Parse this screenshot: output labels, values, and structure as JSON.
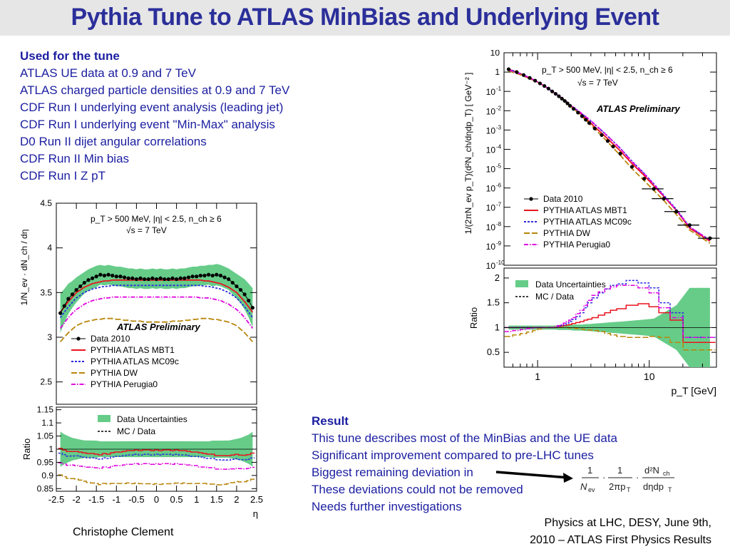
{
  "title": "Pythia Tune to ATLAS MinBias and Underlying Event",
  "used_for_tune": {
    "heading": "Used for the tune",
    "items": [
      "ATLAS UE data at 0.9 and 7 TeV",
      "ATLAS charged particle densities at 0.9 and 7 TeV",
      "CDF Run I underlying event analysis (leading jet)",
      "CDF Run I underlying event \"Min-Max\" analysis",
      "D0 Run II dijet angular correlations",
      "CDF Run II Min bias",
      "CDF Run I Z pT"
    ]
  },
  "result": {
    "heading": "Result",
    "items": [
      "This tune describes most of the MinBias and the UE data",
      "Significant improvement compared to pre-LHC tunes",
      "Biggest remaining deviation in",
      "These deviations could not be removed",
      "Needs further investigations"
    ]
  },
  "formula": {
    "num1": "1",
    "den1": "N",
    "sub1": "ev",
    "num2": "1",
    "den2": "2πp",
    "sub2": "T",
    "num3": "d²N",
    "sub3n": "ch",
    "den3": "dηdp",
    "sub3d": "T"
  },
  "footer": {
    "left": "Christophe Clement",
    "right_line1": "Physics at LHC,  DESY, June  9th,",
    "right_line2": "2010  –  ATLAS First Physics Results"
  },
  "colors": {
    "title": "#2b2f9a",
    "text": "#1b1ea0",
    "band": "#66cc88",
    "data": "#000000",
    "mbt1": "#e8141e",
    "mc09c": "#2a2ae0",
    "dw": "#b8860b",
    "perugia0": "#e000e0"
  },
  "chart_data": [
    {
      "type": "line",
      "name": "eta",
      "cut_label": "p_T > 500 MeV, |η| < 2.5, n_ch ≥ 6",
      "energy_label": "√s = 7 TeV",
      "preliminary": "ATLAS Preliminary",
      "xlabel": "η",
      "ylabel": "1/N_ev · dN_ch / dη",
      "ratio_ylabel": "Ratio",
      "xlim": [
        -2.5,
        2.5
      ],
      "ylim": [
        2.25,
        4.5
      ],
      "ratio_ylim": [
        0.84,
        1.16
      ],
      "xticks": [
        "-2.5",
        "-2",
        "-1.5",
        "-1",
        "-0.5",
        "0",
        "0.5",
        "1",
        "1.5",
        "2",
        "2.5"
      ],
      "yticks": [
        "2.5",
        "3",
        "3.5",
        "4",
        "4.5"
      ],
      "ratio_yticks": [
        "0.85",
        "0.9",
        "0.95",
        "1",
        "1.05",
        "1.1",
        "1.15"
      ],
      "legend": [
        "Data 2010",
        "PYTHIA ATLAS MBT1",
        "PYTHIA ATLAS MC09c",
        "PYTHIA DW",
        "PYTHIA Perugia0"
      ],
      "ratio_legend": [
        "Data Uncertainties",
        "MC / Data"
      ],
      "x": [
        -2.4,
        -2.3,
        -2.2,
        -2.1,
        -2.0,
        -1.9,
        -1.8,
        -1.7,
        -1.6,
        -1.5,
        -1.4,
        -1.3,
        -1.2,
        -1.1,
        -1.0,
        -0.9,
        -0.8,
        -0.7,
        -0.6,
        -0.5,
        -0.4,
        -0.3,
        -0.2,
        -0.1,
        0.0,
        0.1,
        0.2,
        0.3,
        0.4,
        0.5,
        0.6,
        0.7,
        0.8,
        0.9,
        1.0,
        1.1,
        1.2,
        1.3,
        1.4,
        1.5,
        1.6,
        1.7,
        1.8,
        1.9,
        2.0,
        2.1,
        2.2,
        2.3,
        2.4
      ],
      "series": [
        {
          "name": "Data 2010",
          "values": [
            3.27,
            3.35,
            3.43,
            3.48,
            3.53,
            3.57,
            3.61,
            3.64,
            3.66,
            3.68,
            3.7,
            3.69,
            3.7,
            3.69,
            3.68,
            3.68,
            3.67,
            3.66,
            3.66,
            3.65,
            3.66,
            3.65,
            3.65,
            3.66,
            3.65,
            3.66,
            3.65,
            3.65,
            3.66,
            3.65,
            3.66,
            3.66,
            3.67,
            3.68,
            3.68,
            3.69,
            3.69,
            3.7,
            3.69,
            3.7,
            3.69,
            3.67,
            3.65,
            3.61,
            3.57,
            3.53,
            3.48,
            3.41,
            3.33
          ]
        },
        {
          "name": "PYTHIA ATLAS MBT1",
          "values": [
            3.28,
            3.34,
            3.4,
            3.45,
            3.5,
            3.53,
            3.56,
            3.58,
            3.6,
            3.61,
            3.62,
            3.63,
            3.63,
            3.64,
            3.64,
            3.64,
            3.64,
            3.64,
            3.64,
            3.64,
            3.64,
            3.64,
            3.64,
            3.64,
            3.64,
            3.64,
            3.64,
            3.64,
            3.64,
            3.64,
            3.64,
            3.64,
            3.64,
            3.64,
            3.64,
            3.64,
            3.63,
            3.63,
            3.62,
            3.61,
            3.6,
            3.58,
            3.56,
            3.53,
            3.5,
            3.45,
            3.4,
            3.34,
            3.28
          ]
        },
        {
          "name": "PYTHIA ATLAS MC09c",
          "values": [
            3.22,
            3.28,
            3.34,
            3.39,
            3.44,
            3.47,
            3.5,
            3.52,
            3.54,
            3.55,
            3.56,
            3.57,
            3.57,
            3.58,
            3.58,
            3.58,
            3.58,
            3.58,
            3.58,
            3.58,
            3.58,
            3.58,
            3.58,
            3.58,
            3.58,
            3.58,
            3.58,
            3.58,
            3.58,
            3.58,
            3.58,
            3.58,
            3.58,
            3.58,
            3.58,
            3.58,
            3.57,
            3.57,
            3.56,
            3.55,
            3.54,
            3.52,
            3.5,
            3.47,
            3.44,
            3.39,
            3.34,
            3.28,
            3.22
          ]
        },
        {
          "name": "PYTHIA DW",
          "values": [
            2.95,
            3.0,
            3.05,
            3.09,
            3.13,
            3.15,
            3.17,
            3.18,
            3.19,
            3.2,
            3.2,
            3.21,
            3.21,
            3.21,
            3.2,
            3.2,
            3.19,
            3.19,
            3.18,
            3.18,
            3.18,
            3.17,
            3.17,
            3.17,
            3.17,
            3.17,
            3.17,
            3.17,
            3.18,
            3.18,
            3.18,
            3.19,
            3.19,
            3.2,
            3.2,
            3.21,
            3.21,
            3.21,
            3.2,
            3.2,
            3.19,
            3.18,
            3.17,
            3.15,
            3.13,
            3.09,
            3.05,
            3.0,
            2.95
          ]
        },
        {
          "name": "PYTHIA Perugia0",
          "values": [
            3.1,
            3.16,
            3.22,
            3.27,
            3.31,
            3.34,
            3.37,
            3.39,
            3.41,
            3.42,
            3.43,
            3.44,
            3.44,
            3.45,
            3.45,
            3.45,
            3.45,
            3.45,
            3.45,
            3.45,
            3.45,
            3.45,
            3.45,
            3.45,
            3.45,
            3.45,
            3.45,
            3.45,
            3.45,
            3.45,
            3.45,
            3.45,
            3.45,
            3.45,
            3.45,
            3.44,
            3.44,
            3.44,
            3.43,
            3.42,
            3.41,
            3.39,
            3.37,
            3.34,
            3.31,
            3.27,
            3.22,
            3.16,
            3.1
          ]
        }
      ],
      "band_halfwidth": [
        0.22,
        0.19,
        0.17,
        0.15,
        0.14,
        0.13,
        0.12,
        0.12,
        0.12,
        0.12,
        0.11,
        0.11,
        0.11,
        0.11,
        0.11,
        0.11,
        0.11,
        0.11,
        0.11,
        0.11,
        0.11,
        0.11,
        0.11,
        0.11,
        0.11,
        0.11,
        0.11,
        0.11,
        0.11,
        0.11,
        0.11,
        0.11,
        0.11,
        0.11,
        0.11,
        0.11,
        0.11,
        0.11,
        0.12,
        0.12,
        0.12,
        0.12,
        0.12,
        0.13,
        0.14,
        0.15,
        0.17,
        0.19,
        0.22
      ]
    },
    {
      "type": "line",
      "name": "pt",
      "cut_label": "p_T > 500 MeV, |η| < 2.5, n_ch ≥ 6",
      "energy_label": "√s = 7 TeV",
      "preliminary": "ATLAS Preliminary",
      "xlabel": "p_T [GeV]",
      "ylabel": "1/(2πN_ev p_T)(d²N_ch/dηdp_T) [ GeV⁻² ]",
      "ratio_ylabel": "Ratio",
      "xscale": "log",
      "yscale": "log",
      "xlim": [
        0.5,
        40
      ],
      "ylim": [
        1e-10,
        10
      ],
      "ratio_ylim": [
        0.2,
        2.2
      ],
      "xticks": [
        "1",
        "10"
      ],
      "yticks": [
        "10",
        "1",
        "10-1",
        "10-2",
        "10-3",
        "10-4",
        "10-5",
        "10-6",
        "10-7",
        "10-8",
        "10-9",
        "10-10"
      ],
      "ratio_yticks": [
        "0.5",
        "1",
        "1.5",
        "2"
      ],
      "legend": [
        "Data 2010",
        "PYTHIA ATLAS MBT1",
        "PYTHIA ATLAS MC09c",
        "PYTHIA DW",
        "PYTHIA Perugia0"
      ],
      "ratio_legend": [
        "Data Uncertainties",
        "MC / Data"
      ],
      "x": [
        0.55,
        0.65,
        0.75,
        0.85,
        0.95,
        1.05,
        1.15,
        1.25,
        1.35,
        1.45,
        1.55,
        1.65,
        1.75,
        1.85,
        1.95,
        2.1,
        2.3,
        2.5,
        2.7,
        2.9,
        3.25,
        3.75,
        4.25,
        4.75,
        5.5,
        7.0,
        9.0,
        11.0,
        13.5,
        17.5,
        23.0,
        35.0
      ],
      "series": [
        {
          "name": "Data 2010",
          "values": [
            1.4,
            1.0,
            0.7,
            0.5,
            0.36,
            0.26,
            0.19,
            0.14,
            0.1,
            0.075,
            0.056,
            0.042,
            0.032,
            0.024,
            0.018,
            0.0125,
            0.008,
            0.0052,
            0.0034,
            0.0023,
            0.0012,
            0.00055,
            0.00027,
            0.00014,
            6e-05,
            1.25e-05,
            3e-06,
            9e-07,
            2.8e-07,
            6e-08,
            1.2e-08,
            2.5e-09
          ]
        }
      ],
      "ratio_series": [
        {
          "name": "PYTHIA ATLAS MBT1",
          "values": [
            1.0,
            1.0,
            1.0,
            1.0,
            1.0,
            1.0,
            1.0,
            1.0,
            1.0,
            1.0,
            1.02,
            1.03,
            1.04,
            1.05,
            1.06,
            1.08,
            1.1,
            1.12,
            1.15,
            1.17,
            1.2,
            1.25,
            1.3,
            1.35,
            1.38,
            1.45,
            1.48,
            1.42,
            1.3,
            1.15,
            0.7,
            0.7
          ]
        },
        {
          "name": "PYTHIA ATLAS MC09c",
          "values": [
            1.0,
            1.0,
            1.0,
            1.0,
            1.0,
            1.0,
            1.0,
            1.0,
            1.0,
            1.0,
            1.02,
            1.04,
            1.06,
            1.09,
            1.12,
            1.16,
            1.22,
            1.3,
            1.4,
            1.5,
            1.6,
            1.7,
            1.78,
            1.85,
            1.88,
            1.95,
            1.9,
            1.8,
            1.5,
            1.3,
            0.8,
            0.8
          ]
        },
        {
          "name": "PYTHIA DW",
          "values": [
            0.82,
            0.85,
            0.88,
            0.91,
            0.94,
            0.97,
            1.0,
            1.0,
            1.0,
            1.0,
            1.0,
            1.0,
            1.0,
            1.0,
            0.99,
            0.99,
            0.98,
            0.97,
            0.96,
            0.95,
            0.94,
            0.92,
            0.88,
            0.85,
            0.82,
            0.8,
            0.8,
            0.82,
            0.8,
            0.7,
            0.55,
            0.55
          ]
        },
        {
          "name": "PYTHIA Perugia0",
          "values": [
            0.92,
            0.94,
            0.96,
            0.98,
            1.0,
            1.0,
            1.0,
            1.0,
            1.0,
            1.02,
            1.04,
            1.06,
            1.09,
            1.12,
            1.15,
            1.2,
            1.28,
            1.35,
            1.45,
            1.55,
            1.65,
            1.72,
            1.78,
            1.82,
            1.85,
            1.85,
            1.8,
            1.7,
            1.4,
            1.2,
            0.8,
            0.8
          ]
        }
      ],
      "band_halfwidth": [
        0.04,
        0.04,
        0.04,
        0.04,
        0.04,
        0.04,
        0.04,
        0.04,
        0.04,
        0.04,
        0.05,
        0.05,
        0.05,
        0.05,
        0.05,
        0.06,
        0.06,
        0.06,
        0.07,
        0.07,
        0.08,
        0.09,
        0.1,
        0.11,
        0.12,
        0.14,
        0.16,
        0.18,
        0.3,
        0.45,
        0.8,
        0.8
      ]
    }
  ]
}
